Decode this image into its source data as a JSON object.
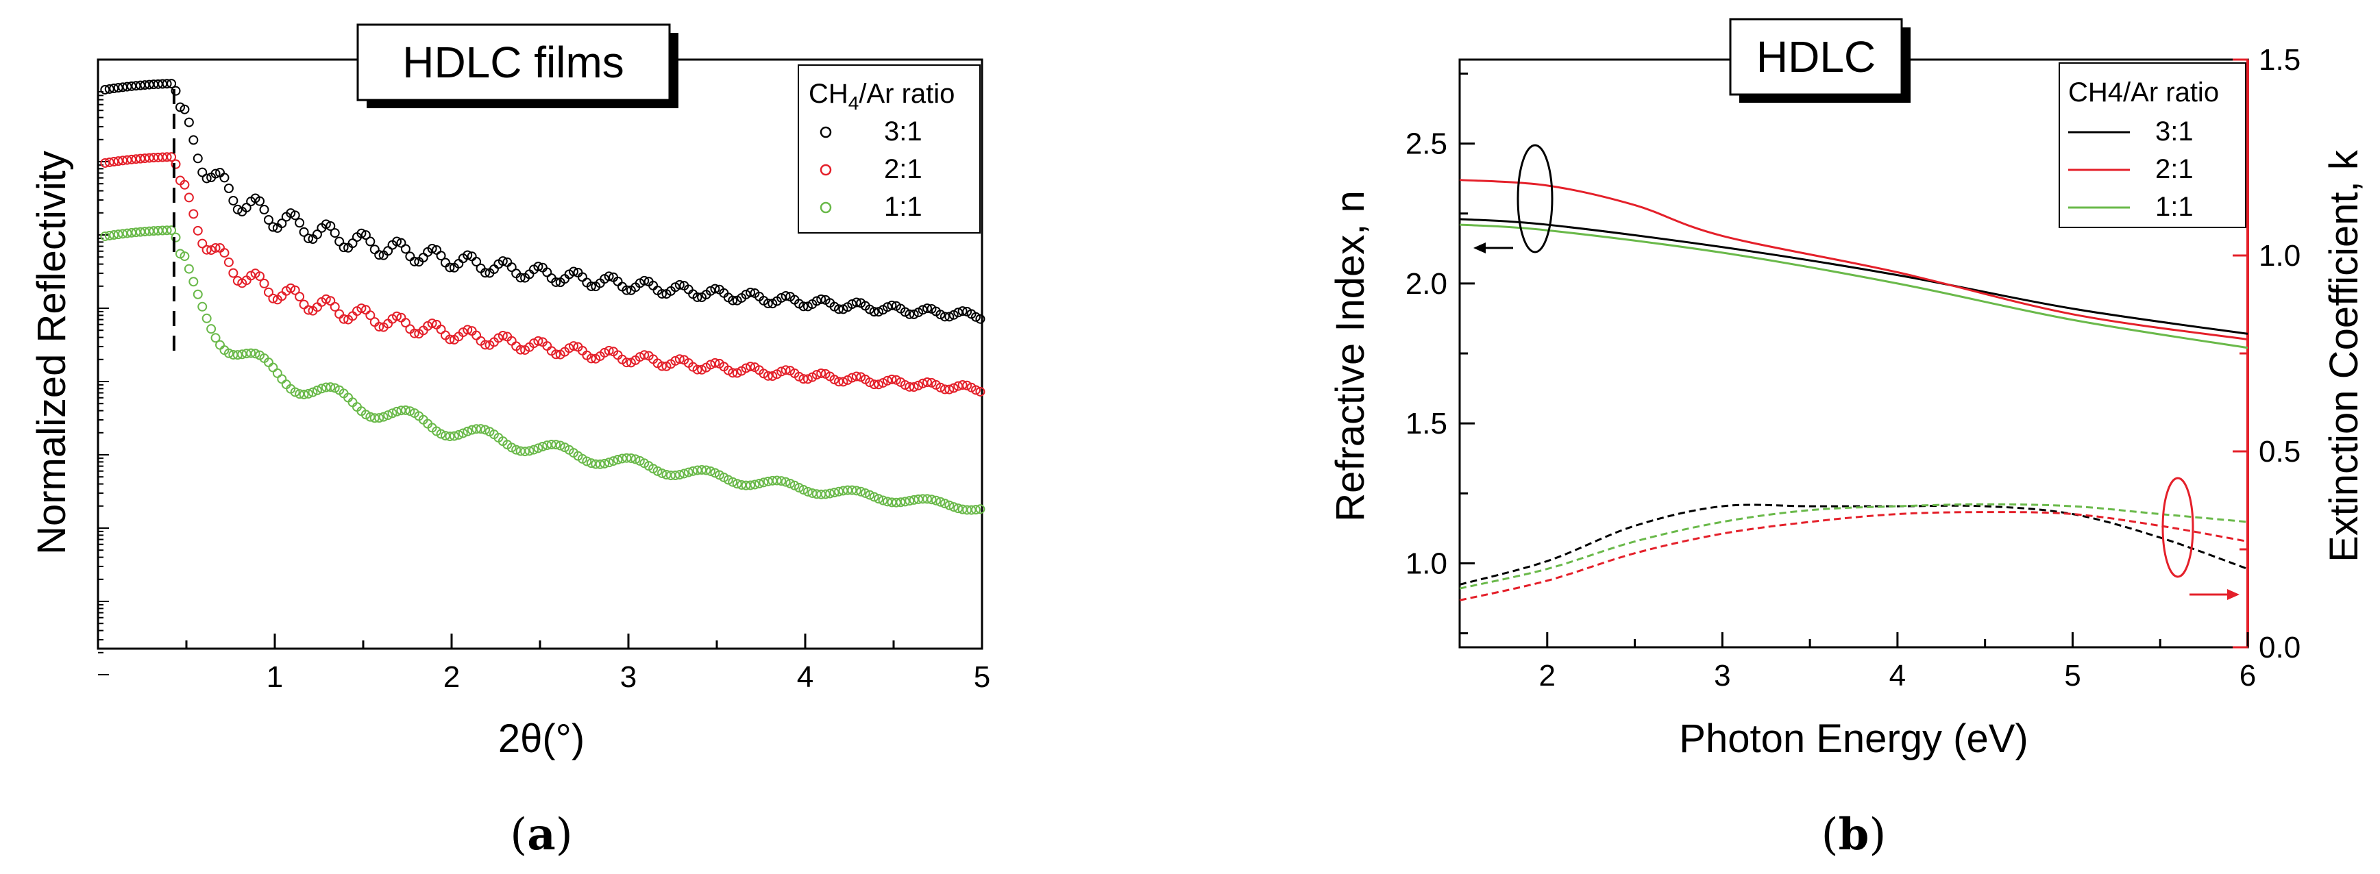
{
  "colors": {
    "black": "#000000",
    "red": "#e4202a",
    "green": "#6ab94a"
  },
  "chart_data": [
    {
      "type": "scatter",
      "panel": "(a)",
      "title": "HDLC films",
      "xlabel": "2θ(°)",
      "ylabel": "Normalized Reflectivity",
      "xlim": [
        0.0,
        5.0
      ],
      "xticks": [
        "1",
        "2",
        "3",
        "4",
        "5"
      ],
      "yscale": "log",
      "yticks_labeled": false,
      "legend_title": "CH4/Ar ratio",
      "legend_title_main": "CH",
      "legend_title_sub": "4",
      "legend_title_rest": "/Ar ratio",
      "legend_location": "top-right",
      "marker": "open-circle",
      "critical_angle_marker": 0.43,
      "series": [
        {
          "name": "3:1",
          "color": "#000000",
          "offset": 0.0,
          "notes": "Kiessig fringes; relative log-reflectivity decades below peak",
          "x": [
            0.05,
            0.43,
            0.5,
            1.0,
            2.0,
            3.0,
            4.0,
            5.0
          ],
          "y": [
            -0.05,
            0.0,
            -0.9,
            -2.0,
            -3.0,
            -3.8,
            -4.2,
            -4.7
          ]
        },
        {
          "name": "2:1",
          "color": "#e4202a",
          "offset": -1.0,
          "x": [
            0.05,
            0.43,
            0.5,
            1.0,
            2.0,
            3.0,
            4.0,
            5.0
          ],
          "y": [
            -0.9,
            -1.0,
            -1.9,
            -3.1,
            -4.2,
            -5.0,
            -5.5,
            -5.9
          ]
        },
        {
          "name": "1:1",
          "color": "#6ab94a",
          "offset": -2.0,
          "x": [
            0.05,
            0.43,
            0.5,
            1.0,
            2.0,
            3.0,
            4.0,
            5.0
          ],
          "y": [
            -1.9,
            -2.0,
            -3.0,
            -4.2,
            -5.6,
            -6.5,
            -6.9,
            -7.1
          ]
        }
      ]
    },
    {
      "type": "line",
      "panel": "(b)",
      "title": "HDLC",
      "xlabel": "Photon Energy (eV)",
      "ylabel": "Refractive Index, n",
      "y2label": "Extinction Coefficient, k",
      "xlim": [
        1.5,
        6.0
      ],
      "ylim": [
        0.7,
        2.8
      ],
      "y2lim": [
        0.0,
        1.5
      ],
      "xticks": [
        "2",
        "3",
        "4",
        "5",
        "6"
      ],
      "yticks": [
        "1.0",
        "1.5",
        "2.0",
        "2.5"
      ],
      "y2ticks": [
        "0.0",
        "0.5",
        "1.0",
        "1.5"
      ],
      "legend_title": "CH4/Ar ratio",
      "legend_location": "top-right",
      "n_series": [
        {
          "name": "3:1",
          "color": "#000000",
          "x": [
            1.5,
            2.0,
            3.0,
            4.0,
            5.0,
            6.0
          ],
          "y": [
            2.23,
            2.21,
            2.13,
            2.03,
            1.91,
            1.82
          ]
        },
        {
          "name": "2:1",
          "color": "#e4202a",
          "x": [
            1.5,
            2.0,
            2.5,
            3.0,
            4.0,
            5.0,
            6.0
          ],
          "y": [
            2.37,
            2.35,
            2.28,
            2.17,
            2.04,
            1.89,
            1.8
          ]
        },
        {
          "name": "1:1",
          "color": "#6ab94a",
          "x": [
            1.5,
            2.0,
            3.0,
            4.0,
            5.0,
            6.0
          ],
          "y": [
            2.21,
            2.19,
            2.11,
            2.0,
            1.87,
            1.77
          ]
        }
      ],
      "k_series": [
        {
          "name": "3:1",
          "color": "#000000",
          "style": "dashed",
          "x": [
            1.5,
            2.0,
            2.5,
            3.0,
            3.5,
            4.0,
            4.5,
            5.0,
            5.5,
            6.0
          ],
          "y": [
            0.16,
            0.22,
            0.31,
            0.36,
            0.36,
            0.36,
            0.36,
            0.34,
            0.28,
            0.2
          ]
        },
        {
          "name": "2:1",
          "color": "#e4202a",
          "style": "dashed",
          "x": [
            1.5,
            2.0,
            2.5,
            3.0,
            3.5,
            4.0,
            4.5,
            5.0,
            5.5,
            6.0
          ],
          "y": [
            0.12,
            0.17,
            0.24,
            0.29,
            0.32,
            0.34,
            0.345,
            0.34,
            0.31,
            0.27
          ]
        },
        {
          "name": "1:1",
          "color": "#6ab94a",
          "style": "dashed",
          "x": [
            1.5,
            2.0,
            2.5,
            3.0,
            3.5,
            4.0,
            4.5,
            5.0,
            5.5,
            6.0
          ],
          "y": [
            0.15,
            0.2,
            0.27,
            0.32,
            0.35,
            0.36,
            0.365,
            0.36,
            0.34,
            0.32
          ]
        }
      ]
    }
  ]
}
